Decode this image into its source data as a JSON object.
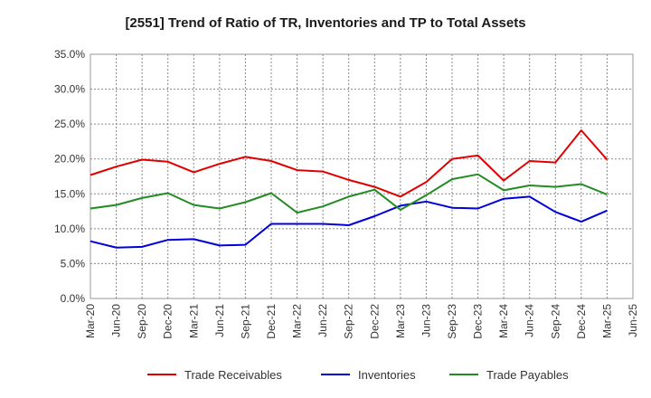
{
  "chart_data": {
    "type": "line",
    "title": "[2551]  Trend of Ratio of TR, Inventories and TP to Total Assets",
    "xlabel": "",
    "ylabel": "",
    "x": [
      "Mar-20",
      "Jun-20",
      "Sep-20",
      "Dec-20",
      "Mar-21",
      "Jun-21",
      "Sep-21",
      "Dec-21",
      "Mar-22",
      "Jun-22",
      "Sep-22",
      "Dec-22",
      "Mar-23",
      "Jun-23",
      "Sep-23",
      "Dec-23",
      "Mar-24",
      "Jun-24",
      "Sep-24",
      "Dec-24",
      "Mar-25",
      "Jun-25"
    ],
    "ylim": [
      0,
      35
    ],
    "yticks": [
      "0.0%",
      "5.0%",
      "10.0%",
      "15.0%",
      "20.0%",
      "25.0%",
      "30.0%",
      "35.0%"
    ],
    "grid": true,
    "legend_position": "bottom",
    "series": [
      {
        "name": "Trade Receivables",
        "color": "#e00000",
        "values": [
          17.7,
          18.9,
          19.9,
          19.6,
          18.1,
          19.3,
          20.3,
          19.7,
          18.4,
          18.2,
          17.0,
          16.0,
          14.6,
          16.7,
          20.0,
          20.5,
          16.9,
          19.7,
          19.5,
          24.1,
          19.9,
          null
        ]
      },
      {
        "name": "Inventories",
        "color": "#0000dd",
        "values": [
          8.2,
          7.3,
          7.4,
          8.4,
          8.5,
          7.6,
          7.7,
          10.7,
          10.7,
          10.7,
          10.5,
          11.8,
          13.3,
          13.9,
          13.0,
          12.9,
          14.3,
          14.6,
          12.4,
          11.0,
          12.6,
          null
        ]
      },
      {
        "name": "Trade Payables",
        "color": "#228b22",
        "values": [
          12.9,
          13.4,
          14.4,
          15.1,
          13.4,
          12.9,
          13.8,
          15.1,
          12.3,
          13.2,
          14.6,
          15.6,
          12.7,
          14.8,
          17.1,
          17.8,
          15.5,
          16.2,
          16.0,
          16.4,
          14.9,
          null
        ]
      }
    ]
  }
}
